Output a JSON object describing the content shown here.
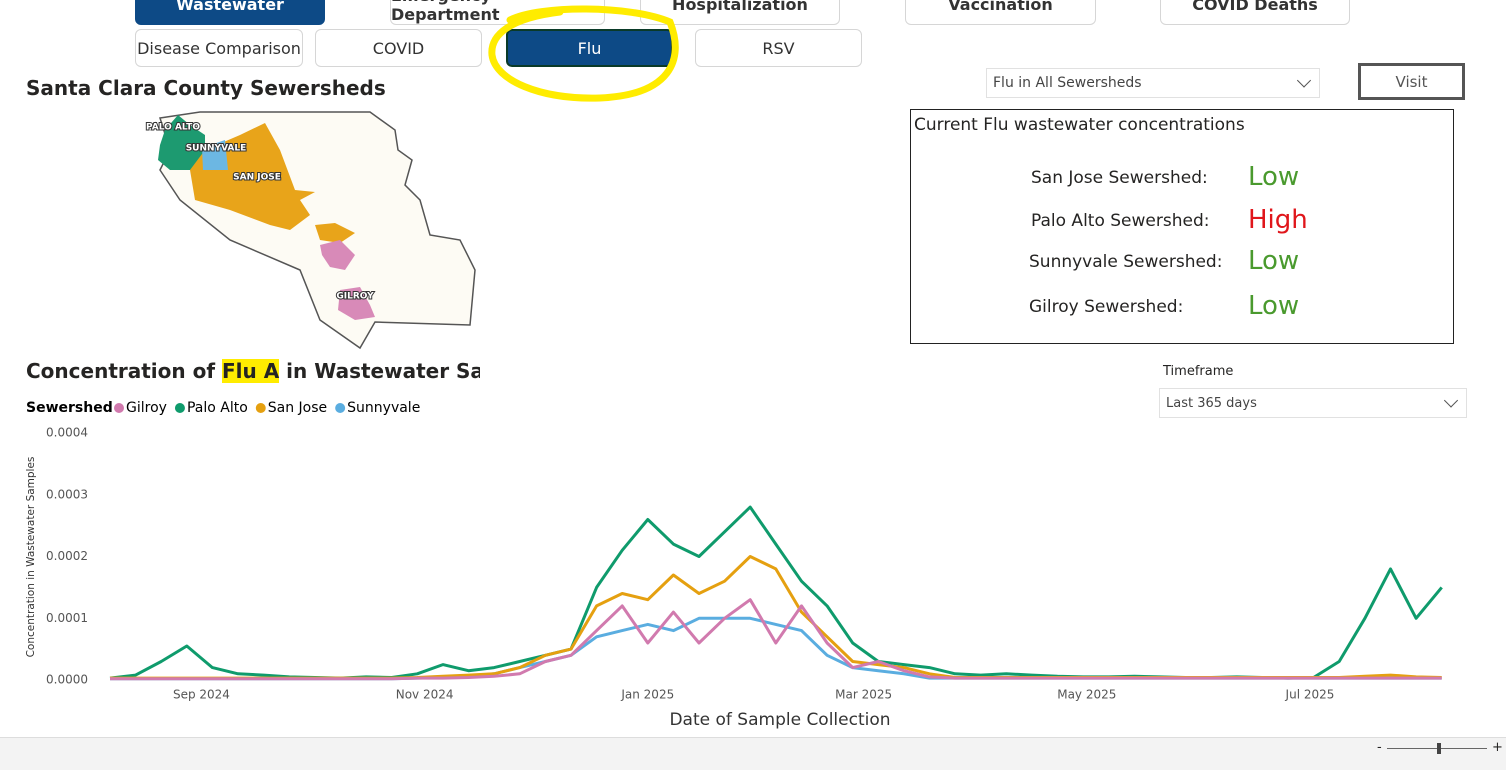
{
  "tabs_top": [
    "Wastewater",
    "Emergency Department",
    "Hospitalization",
    "Vaccination",
    "COVID Deaths"
  ],
  "tabs": [
    "Disease Comparison",
    "COVID",
    "Flu",
    "RSV"
  ],
  "map": {
    "title": "Santa Clara County Sewersheds",
    "labels": [
      "PALO ALTO",
      "SUNNYVALE",
      "SAN JOSE",
      "GILROY"
    ]
  },
  "dropdown": "Flu in All Sewersheds",
  "visit_button": "Visit",
  "status": {
    "title": "Current Flu wastewater concentrations",
    "rows": [
      {
        "name": "San Jose Sewershed:",
        "level": "Low",
        "color": "#4a9a2e"
      },
      {
        "name": "Palo Alto Sewershed:",
        "level": "High",
        "color": "#e0161b"
      },
      {
        "name": "Sunnyvale Sewershed:",
        "level": "Low",
        "color": "#4a9a2e"
      },
      {
        "name": "Gilroy Sewershed:",
        "level": "Low",
        "color": "#4a9a2e"
      }
    ]
  },
  "timeframe": {
    "label": "Timeframe",
    "value": "Last 365 days"
  },
  "zoom": [
    "-",
    "+"
  ],
  "chart_data": {
    "type": "line",
    "title": [
      "Concentration of ",
      "Flu A",
      " in Wastewater Samples"
    ],
    "legend_title": "Sewershed",
    "x_label": "Date of Sample Collection",
    "y_label": "Concentration in Wastewater Samples",
    "x": [
      -25,
      -18,
      -11,
      -4,
      3,
      10,
      17,
      24,
      31,
      38,
      45,
      52,
      59,
      66,
      73,
      80,
      87,
      94,
      101,
      108,
      115,
      122,
      129,
      136,
      143,
      150,
      157,
      164,
      171,
      178,
      185,
      192,
      199,
      206,
      213,
      220,
      227,
      234,
      241,
      248,
      255,
      262,
      269,
      276,
      283,
      290,
      297,
      304,
      311,
      318,
      325,
      332,
      339
    ],
    "xlim": [
      -25,
      341
    ],
    "xticks": [
      {
        "value": 0,
        "label": "Sep 2024"
      },
      {
        "value": 61,
        "label": "Nov 2024"
      },
      {
        "value": 122,
        "label": "Jan 2025"
      },
      {
        "value": 181,
        "label": "Mar 2025"
      },
      {
        "value": 242,
        "label": "May 2025"
      },
      {
        "value": 303,
        "label": "Jul 2025"
      }
    ],
    "ylim": [
      0,
      0.0004
    ],
    "yticks": [
      {
        "value": 0,
        "label": "0.0000"
      },
      {
        "value": 0.0001,
        "label": "0.0001"
      },
      {
        "value": 0.0002,
        "label": "0.0002"
      },
      {
        "value": 0.0003,
        "label": "0.0003"
      },
      {
        "value": 0.0004,
        "label": "0.0004"
      }
    ],
    "series": [
      {
        "name": "Gilroy",
        "color": "#d17aae",
        "values": [
          2e-06,
          2e-06,
          2e-06,
          2e-06,
          2e-06,
          2e-06,
          2e-06,
          2e-06,
          2e-06,
          2e-06,
          2e-06,
          2e-06,
          3e-06,
          3e-06,
          4e-06,
          6e-06,
          1e-05,
          3e-05,
          4e-05,
          8e-05,
          0.00012,
          6e-05,
          0.00011,
          6e-05,
          0.0001,
          0.00013,
          6e-05,
          0.00012,
          6e-05,
          2e-05,
          3e-05,
          1.5e-05,
          5e-06,
          3e-06,
          3e-06,
          3e-06,
          3e-06,
          3e-06,
          3e-06,
          3e-06,
          3e-06,
          3e-06,
          3e-06,
          3e-06,
          3e-06,
          3e-06,
          3e-06,
          3e-06,
          3e-06,
          3e-06,
          3e-06,
          3e-06,
          3e-06
        ]
      },
      {
        "name": "Palo Alto",
        "color": "#0f9b6c",
        "values": [
          3e-06,
          8e-06,
          3e-05,
          5.5e-05,
          2e-05,
          1e-05,
          8e-06,
          5e-06,
          4e-06,
          3e-06,
          5e-06,
          4e-06,
          1e-05,
          2.5e-05,
          1.5e-05,
          2e-05,
          3e-05,
          4e-05,
          5e-05,
          0.00015,
          0.00021,
          0.00026,
          0.00022,
          0.0002,
          0.00024,
          0.00028,
          0.00022,
          0.00016,
          0.00012,
          6e-05,
          3e-05,
          2.5e-05,
          2e-05,
          1e-05,
          8e-06,
          1e-05,
          8e-06,
          6e-06,
          5e-06,
          5e-06,
          6e-06,
          5e-06,
          4e-06,
          4e-06,
          5e-06,
          4e-06,
          3e-06,
          4e-06,
          3e-05,
          0.0001,
          0.00018,
          0.0001,
          0.00015
        ]
      },
      {
        "name": "San Jose",
        "color": "#e5a010",
        "values": [
          3e-06,
          3e-06,
          3e-06,
          3e-06,
          3e-06,
          3e-06,
          3e-06,
          3e-06,
          3e-06,
          3e-06,
          3e-06,
          3e-06,
          4e-06,
          6e-06,
          8e-06,
          1e-05,
          2e-05,
          4e-05,
          5e-05,
          0.00012,
          0.00014,
          0.00013,
          0.00017,
          0.00014,
          0.00016,
          0.0002,
          0.00018,
          0.00011,
          7e-05,
          3e-05,
          2.5e-05,
          2e-05,
          1e-05,
          4e-06,
          4e-06,
          4e-06,
          4e-06,
          4e-06,
          4e-06,
          4e-06,
          4e-06,
          4e-06,
          4e-06,
          4e-06,
          4e-06,
          4e-06,
          4e-06,
          4e-06,
          4e-06,
          6e-06,
          8e-06,
          5e-06,
          4e-06
        ]
      },
      {
        "name": "Sunnyvale",
        "color": "#5aade0",
        "values": [
          2e-06,
          2e-06,
          2e-06,
          2e-06,
          2e-06,
          2e-06,
          2e-06,
          2e-06,
          2e-06,
          2e-06,
          2e-06,
          2e-06,
          3e-06,
          4e-06,
          6e-06,
          1e-05,
          2e-05,
          3e-05,
          4e-05,
          7e-05,
          8e-05,
          9e-05,
          8e-05,
          0.0001,
          0.0001,
          0.0001,
          9e-05,
          8e-05,
          4e-05,
          2e-05,
          1.5e-05,
          1e-05,
          3e-06,
          3e-06,
          3e-06,
          3e-06,
          3e-06,
          3e-06,
          3e-06,
          3e-06,
          3e-06,
          3e-06,
          3e-06,
          3e-06,
          3e-06,
          3e-06,
          3e-06,
          3e-06,
          3e-06,
          3e-06,
          3e-06,
          3e-06,
          3e-06
        ]
      }
    ]
  }
}
